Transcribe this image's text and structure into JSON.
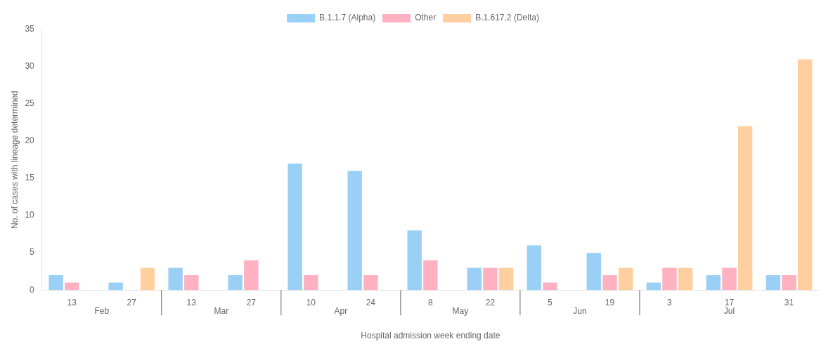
{
  "chart_data": {
    "type": "bar",
    "xlabel": "Hospital admission week ending date",
    "ylabel": "No. of cases with lineage determined",
    "categories": [
      "13",
      "27",
      "13",
      "27",
      "10",
      "24",
      "8",
      "22",
      "5",
      "19",
      "3",
      "17",
      "31"
    ],
    "category_groups": [
      "Feb",
      "Feb",
      "Mar",
      "Mar",
      "Apr",
      "Apr",
      "May",
      "May",
      "Jun",
      "Jun",
      "Jul",
      "Jul",
      "Jul"
    ],
    "series": [
      {
        "name": "B.1.1.7 (Alpha)",
        "values": [
          2,
          1,
          3,
          2,
          17,
          16,
          8,
          3,
          6,
          5,
          1,
          2,
          2
        ]
      },
      {
        "name": "Other",
        "values": [
          1,
          0,
          2,
          4,
          2,
          2,
          4,
          3,
          1,
          2,
          3,
          3,
          2
        ]
      },
      {
        "name": "B.1.617.2 (Delta)",
        "values": [
          0,
          3,
          0,
          0,
          0,
          0,
          0,
          3,
          0,
          3,
          3,
          22,
          31
        ]
      }
    ],
    "ylim": [
      0,
      35
    ],
    "yticks": [
      0,
      5,
      10,
      15,
      20,
      25,
      30,
      35
    ],
    "grid": false,
    "legend": "top"
  }
}
